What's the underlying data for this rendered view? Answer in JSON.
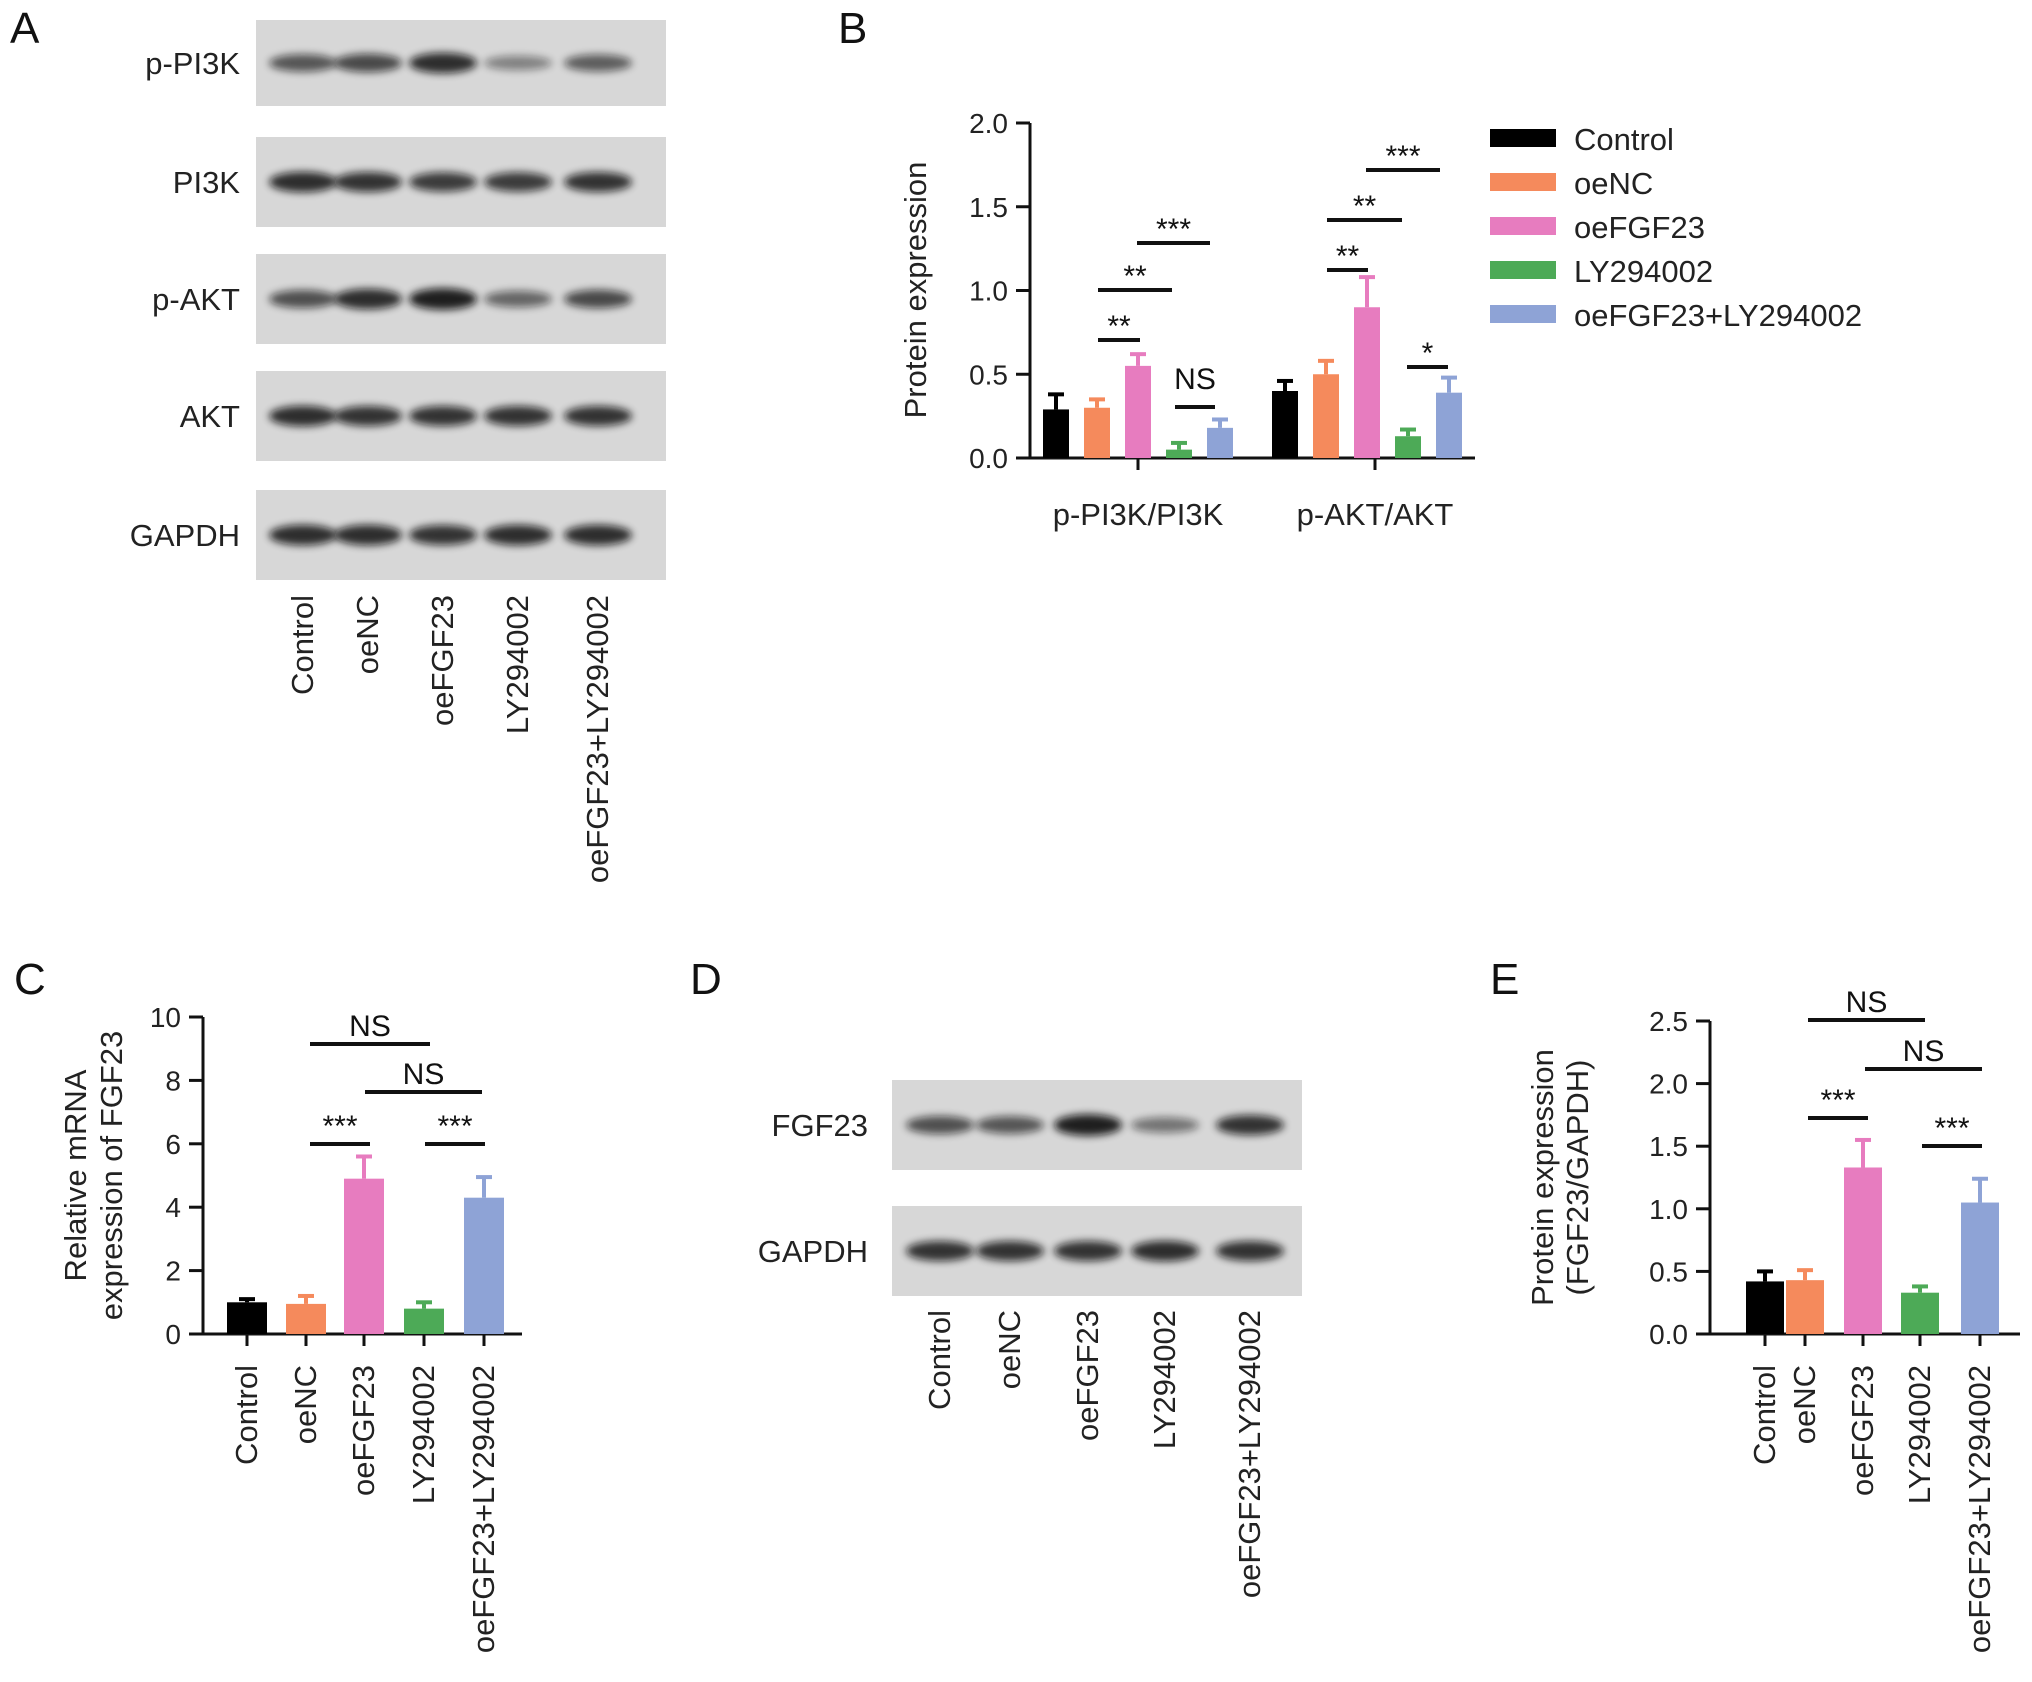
{
  "panels": {
    "A": {
      "letter": "A",
      "blot_rows": [
        "p-PI3K",
        "PI3K",
        "p-AKT",
        "AKT",
        "GAPDH"
      ],
      "lanes": [
        "Control",
        "oeNC",
        "oeFGF23",
        "LY294002",
        "oeFGF23+LY294002"
      ]
    },
    "B": {
      "letter": "B"
    },
    "C": {
      "letter": "C"
    },
    "D": {
      "letter": "D",
      "blot_rows": [
        "FGF23",
        "GAPDH"
      ],
      "lanes": [
        "Control",
        "oeNC",
        "oeFGF23",
        "LY294002",
        "oeFGF23+LY294002"
      ]
    },
    "E": {
      "letter": "E"
    }
  },
  "colors": {
    "Control": "#000000",
    "oeNC": "#f58a5c",
    "oeFGF23": "#e77cbf",
    "LY294002": "#4daa57",
    "oeFGF23+LY294002": "#8ea3d6"
  },
  "chart_data": [
    {
      "panel": "B",
      "type": "bar",
      "ylabel": "Protein expression",
      "ylim": [
        0,
        2.0
      ],
      "yticks": [
        "0.0",
        "0.5",
        "1.0",
        "1.5",
        "2.0"
      ],
      "categories": [
        "p-PI3K/PI3K",
        "p-AKT/AKT"
      ],
      "legend": [
        "Control",
        "oeNC",
        "oeFGF23",
        "LY294002",
        "oeFGF23+LY294002"
      ],
      "legend_position": "right",
      "series": [
        {
          "name": "Control",
          "values": [
            0.29,
            0.4
          ],
          "errors": [
            0.09,
            0.06
          ]
        },
        {
          "name": "oeNC",
          "values": [
            0.3,
            0.5
          ],
          "errors": [
            0.05,
            0.08
          ]
        },
        {
          "name": "oeFGF23",
          "values": [
            0.55,
            0.9
          ],
          "errors": [
            0.07,
            0.18
          ]
        },
        {
          "name": "LY294002",
          "values": [
            0.05,
            0.13
          ],
          "errors": [
            0.04,
            0.04
          ]
        },
        {
          "name": "oeFGF23+LY294002",
          "values": [
            0.18,
            0.39
          ],
          "errors": [
            0.05,
            0.09
          ]
        }
      ],
      "annotations": [
        "**",
        "**",
        "***",
        "NS",
        "**",
        "**",
        "***",
        "*"
      ]
    },
    {
      "panel": "C",
      "type": "bar",
      "ylabel_lines": [
        "Relative mRNA",
        "expression of FGF23"
      ],
      "ylim": [
        0,
        10
      ],
      "yticks": [
        "0",
        "2",
        "4",
        "6",
        "8",
        "10"
      ],
      "categories": [
        "Control",
        "oeNC",
        "oeFGF23",
        "LY294002",
        "oeFGF23+LY294002"
      ],
      "values": [
        1.0,
        0.95,
        4.9,
        0.8,
        4.3
      ],
      "errors": [
        0.1,
        0.25,
        0.7,
        0.2,
        0.65
      ],
      "annotations": [
        "NS",
        "NS",
        "***",
        "***"
      ]
    },
    {
      "panel": "E",
      "type": "bar",
      "ylabel_lines": [
        "Protein expression",
        "(FGF23/GAPDH)"
      ],
      "ylim": [
        0,
        2.5
      ],
      "yticks": [
        "0.0",
        "0.5",
        "1.0",
        "1.5",
        "2.0",
        "2.5"
      ],
      "categories": [
        "Control",
        "oeNC",
        "oeFGF23",
        "LY294002",
        "oeFGF23+LY294002"
      ],
      "values": [
        0.42,
        0.43,
        1.33,
        0.33,
        1.05
      ],
      "errors": [
        0.08,
        0.08,
        0.22,
        0.05,
        0.19
      ],
      "annotations": [
        "NS",
        "NS",
        "***",
        "***"
      ]
    }
  ]
}
